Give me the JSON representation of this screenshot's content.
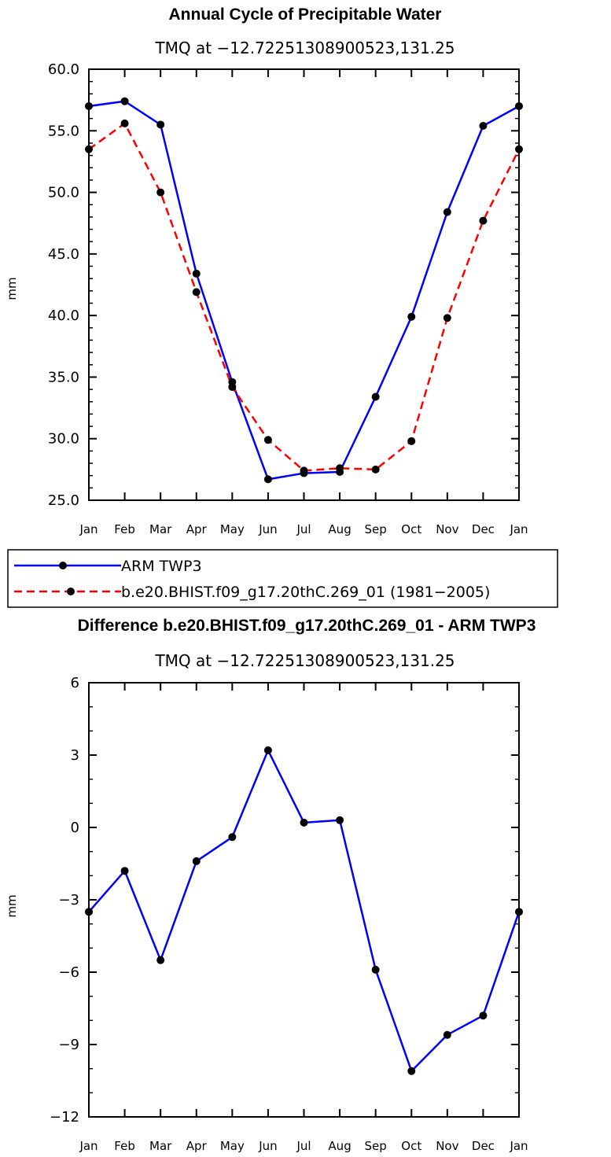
{
  "chart_data": [
    {
      "type": "line",
      "title": "Annual Cycle of Precipitable Water",
      "subtitle": "TMQ at −12.72251308900523,131.25",
      "ylabel": "mm",
      "xlabel": "",
      "categories": [
        "Jan",
        "Feb",
        "Mar",
        "Apr",
        "May",
        "Jun",
        "Jul",
        "Aug",
        "Sep",
        "Oct",
        "Nov",
        "Dec",
        "Jan"
      ],
      "ylim": [
        25.0,
        60.0
      ],
      "yticks": [
        "25.0",
        "30.0",
        "35.0",
        "40.0",
        "45.0",
        "50.0",
        "55.0",
        "60.0"
      ],
      "grid": false,
      "legend_position": "below",
      "series": [
        {
          "name": "ARM TWP3",
          "color": "#0000ff",
          "dash": "solid",
          "values": [
            57.0,
            57.4,
            55.5,
            43.4,
            34.6,
            26.7,
            27.2,
            27.3,
            33.4,
            39.9,
            48.4,
            55.4,
            57.0
          ]
        },
        {
          "name": "b.e20.BHIST.f09_g17.20thC.269_01 (1981−2005)",
          "color": "#ff0000",
          "dash": "dashed",
          "values": [
            53.5,
            55.6,
            50.0,
            41.9,
            34.2,
            29.9,
            27.4,
            27.6,
            27.5,
            29.8,
            39.8,
            47.7,
            53.5
          ]
        }
      ]
    },
    {
      "type": "line",
      "title": "Difference b.e20.BHIST.f09_g17.20thC.269_01 - ARM TWP3",
      "subtitle": "TMQ at −12.72251308900523,131.25",
      "ylabel": "mm",
      "xlabel": "",
      "categories": [
        "Jan",
        "Feb",
        "Mar",
        "Apr",
        "May",
        "Jun",
        "Jul",
        "Aug",
        "Sep",
        "Oct",
        "Nov",
        "Dec",
        "Jan"
      ],
      "ylim": [
        -12,
        6
      ],
      "yticks": [
        "−12",
        "−9",
        "−6",
        "−3",
        "0",
        "3",
        "6"
      ],
      "grid": false,
      "series": [
        {
          "color": "#0000ff",
          "dash": "solid",
          "values": [
            -3.5,
            -1.8,
            -5.5,
            -1.4,
            -0.4,
            3.2,
            0.2,
            0.3,
            -5.9,
            -10.1,
            -8.6,
            -7.8,
            -3.5
          ]
        }
      ]
    }
  ]
}
